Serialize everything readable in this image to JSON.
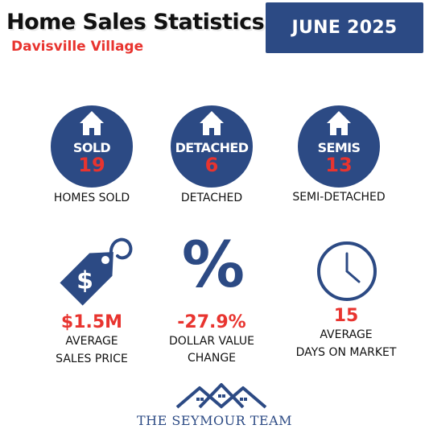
{
  "header": {
    "title": "Home Sales Statistics",
    "subtitle": "Davisville Village",
    "month": "JUNE 2025"
  },
  "colors": {
    "navy": "#2c4a84",
    "red": "#e8342f"
  },
  "circles": [
    {
      "label": "SOLD",
      "value": "19",
      "caption": "HOMES SOLD",
      "icon": "house-icon"
    },
    {
      "label": "DETACHED",
      "value": "6",
      "caption": "DETACHED",
      "icon": "house-icon"
    },
    {
      "label": "SEMIS",
      "value": "13",
      "caption": "SEMI-DETACHED",
      "icon": "house-icon"
    }
  ],
  "stats": [
    {
      "value": "$1.5M",
      "line1": "AVERAGE",
      "line2": "SALES PRICE",
      "icon": "price-tag-icon"
    },
    {
      "value": "-27.9%",
      "line1": "DOLLAR VALUE",
      "line2": "CHANGE",
      "icon": "percent-icon"
    },
    {
      "value": "15",
      "line1": "AVERAGE",
      "line2": "DAYS ON MARKET",
      "icon": "clock-icon"
    }
  ],
  "footer": {
    "logo_text": "THE SEYMOUR TEAM",
    "icon": "rooftops-logo-icon"
  }
}
